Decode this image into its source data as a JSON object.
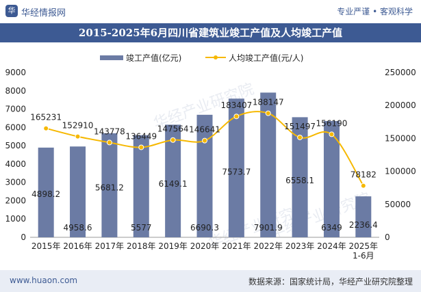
{
  "header": {
    "brand": "华经情报网",
    "logo_char": "华",
    "tagline": "专业严谨 • 客观科学"
  },
  "title": "2015-2025年6月四川省建筑业竣工产值及人均竣工产值",
  "footer": {
    "site": "www.huaon.com",
    "source": "数据来源：国家统计局，华经产业研究院整理"
  },
  "watermark": "华经产业研究院",
  "colors": {
    "bar": "#6b7ba4",
    "line": "#f6b800",
    "header": "#3d5a93"
  },
  "chart_data": {
    "type": "bar",
    "categories": [
      "2015年",
      "2016年",
      "2017年",
      "2018年",
      "2019年",
      "2020年",
      "2021年",
      "2022年",
      "2023年",
      "2024年",
      "2025年\n1-6月"
    ],
    "series": [
      {
        "name": "竣工产值(亿元)",
        "type": "bar",
        "axis": "left",
        "values": [
          4898.2,
          4958.6,
          5681.2,
          5577,
          6149.1,
          6690.3,
          7573.7,
          7901.9,
          6558.1,
          6349,
          2236.4
        ],
        "labels": [
          "4898.2",
          "4958.6",
          "5681.2",
          "5577",
          "6149.1",
          "6690.3",
          "7573.7",
          "7901.9",
          "6558.1",
          "6349",
          "2236.4"
        ]
      },
      {
        "name": "人均竣工产值(元/人)",
        "type": "line",
        "axis": "right",
        "values": [
          165231,
          152910,
          143778,
          136449,
          147564,
          146641,
          183407,
          188147,
          151497,
          156190,
          78182
        ],
        "labels": [
          "165231",
          "152910",
          "143778",
          "136449",
          "147564",
          "146641",
          "183407",
          "188147",
          "151497",
          "156190",
          "78182"
        ]
      }
    ],
    "y_left": {
      "min": 0,
      "max": 9000,
      "ticks": [
        "0",
        "1000",
        "2000",
        "3000",
        "4000",
        "5000",
        "6000",
        "7000",
        "8000",
        "9000"
      ]
    },
    "y_right": {
      "min": 0,
      "max": 250000,
      "ticks": [
        "0",
        "50000",
        "100000",
        "150000",
        "200000",
        "250000"
      ]
    },
    "legend_position": "top-center",
    "grid": false
  }
}
